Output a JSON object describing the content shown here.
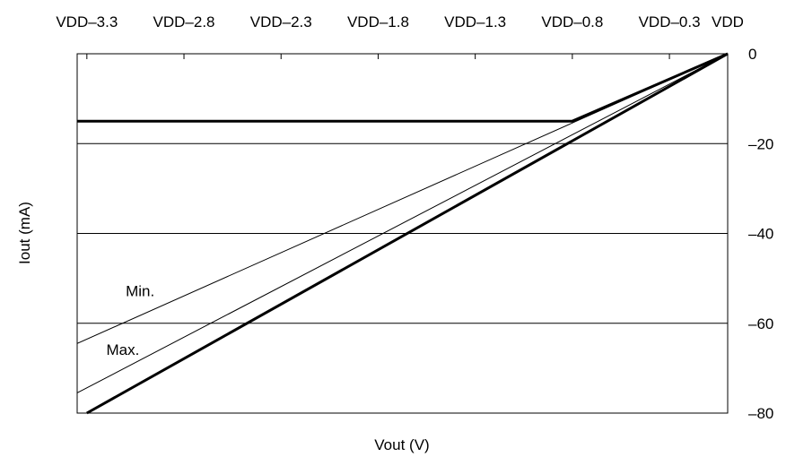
{
  "chart_data": {
    "type": "line",
    "xlabel": "Vout (V)",
    "ylabel": "Iout (mA)",
    "x_ticks": [
      "VDD–3.3",
      "VDD–2.8",
      "VDD–2.3",
      "VDD–1.8",
      "VDD–1.3",
      "VDD–0.8",
      "VDD–0.3",
      "VDD"
    ],
    "y_ticks": [
      "0",
      "–20",
      "–40",
      "–60",
      "–80"
    ],
    "y_tick_values": [
      0,
      -20,
      -40,
      -60,
      -80
    ],
    "xlim": [
      -3.35,
      0
    ],
    "ylim": [
      -80,
      0
    ],
    "grid": "horizontal",
    "x_axis_position": "top",
    "y_axis_position": "right",
    "series": [
      {
        "style": "thick",
        "x": [
          -3.35,
          -0.8,
          0
        ],
        "y": [
          -15,
          -15,
          0
        ]
      },
      {
        "style": "thin",
        "x": [
          -3.35,
          0
        ],
        "y": [
          -64.5,
          0
        ]
      },
      {
        "style": "thin",
        "x": [
          -3.35,
          0
        ],
        "y": [
          -75.5,
          0
        ]
      },
      {
        "style": "thick",
        "x": [
          -3.3,
          0
        ],
        "y": [
          -80,
          0
        ]
      }
    ],
    "annotations": [
      {
        "text": "Min.",
        "x": -3.1,
        "y": -54
      },
      {
        "text": "Max.",
        "x": -3.2,
        "y": -67
      }
    ]
  }
}
